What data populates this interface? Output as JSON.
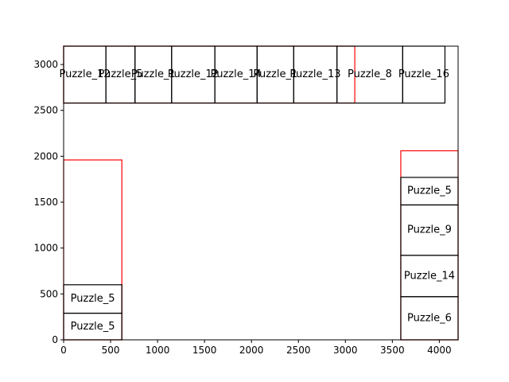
{
  "chart_data": {
    "type": "rectangle-packing",
    "title": "",
    "xlabel": "",
    "ylabel": "",
    "xlim": [
      0,
      4200
    ],
    "ylim": [
      0,
      3200
    ],
    "xticks": [
      0,
      500,
      1000,
      1500,
      2000,
      2500,
      3000,
      3500,
      4000
    ],
    "yticks": [
      0,
      500,
      1000,
      1500,
      2000,
      2500,
      3000
    ],
    "grid": false,
    "legend": "none",
    "colors": {
      "container": "#ff0000",
      "piece": "#000000",
      "axis": "#000000"
    },
    "containers": [
      {
        "x0": 0,
        "y0": 0,
        "x1": 620,
        "y1": 1960
      },
      {
        "x0": 3590,
        "y0": 0,
        "x1": 4200,
        "y1": 2060
      },
      {
        "x0": 0,
        "y0": 2580,
        "x1": 3100,
        "y1": 3200
      }
    ],
    "pieces": [
      {
        "label": "Puzzle_5",
        "x0": 0,
        "y0": 0,
        "x1": 620,
        "y1": 290
      },
      {
        "label": "Puzzle_5",
        "x0": 0,
        "y0": 290,
        "x1": 620,
        "y1": 600
      },
      {
        "label": "Puzzle_6",
        "x0": 3590,
        "y0": 0,
        "x1": 4200,
        "y1": 470
      },
      {
        "label": "Puzzle_14",
        "x0": 3590,
        "y0": 470,
        "x1": 4200,
        "y1": 920
      },
      {
        "label": "Puzzle_9",
        "x0": 3590,
        "y0": 920,
        "x1": 4200,
        "y1": 1470
      },
      {
        "label": "Puzzle_5",
        "x0": 3590,
        "y0": 1470,
        "x1": 4200,
        "y1": 1770
      },
      {
        "label": "Puzzle_12",
        "x0": 0,
        "y0": 2580,
        "x1": 450,
        "y1": 3200
      },
      {
        "label": "Puzzle_5",
        "x0": 450,
        "y0": 2580,
        "x1": 760,
        "y1": 3200
      },
      {
        "label": "Puzzle_1",
        "x0": 760,
        "y0": 2580,
        "x1": 1150,
        "y1": 3200
      },
      {
        "label": "Puzzle_12",
        "x0": 1150,
        "y0": 2580,
        "x1": 1610,
        "y1": 3200
      },
      {
        "label": "Puzzle_14",
        "x0": 1610,
        "y0": 2580,
        "x1": 2060,
        "y1": 3200
      },
      {
        "label": "Puzzle_1",
        "x0": 2060,
        "y0": 2580,
        "x1": 2450,
        "y1": 3200
      },
      {
        "label": "Puzzle_13",
        "x0": 2450,
        "y0": 2580,
        "x1": 2910,
        "y1": 3200
      },
      {
        "label": "Puzzle_8",
        "x0": 2910,
        "y0": 2580,
        "x1": 3610,
        "y1": 3200
      },
      {
        "label": "Puzzle_16",
        "x0": 3610,
        "y0": 2580,
        "x1": 4060,
        "y1": 3200
      }
    ]
  }
}
